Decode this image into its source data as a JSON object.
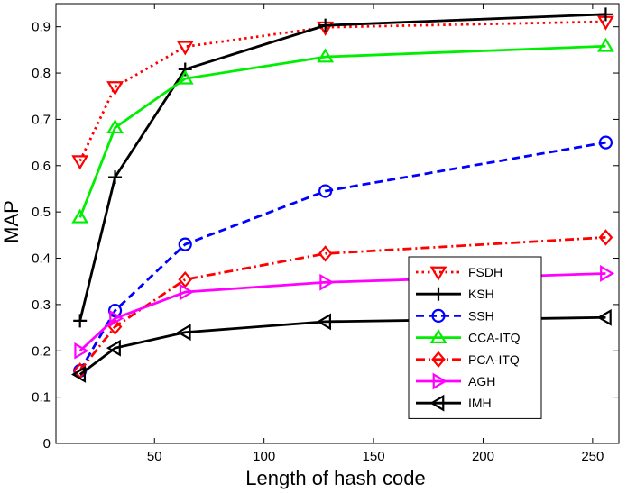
{
  "chart_data": {
    "type": "line",
    "title": "",
    "xlabel": "Length of hash code",
    "ylabel": "MAP",
    "xlim": [
      5,
      262
    ],
    "ylim": [
      0,
      0.95
    ],
    "xticks": [
      50,
      100,
      150,
      200,
      250
    ],
    "yticks": [
      0,
      0.1,
      0.2,
      0.3,
      0.4,
      0.5,
      0.6,
      0.7,
      0.8,
      0.9
    ],
    "x": [
      16,
      32,
      64,
      128,
      256
    ],
    "grid": false,
    "legend_position": "lower-right",
    "series": [
      {
        "name": "FSDH",
        "values": [
          0.61,
          0.77,
          0.857,
          0.899,
          0.911
        ],
        "color": "#ff0000",
        "dash": "dotted",
        "marker": "triangle-down"
      },
      {
        "name": "KSH",
        "values": [
          0.265,
          0.575,
          0.808,
          0.903,
          0.927
        ],
        "color": "#000000",
        "dash": "solid",
        "marker": "plus"
      },
      {
        "name": "SSH",
        "values": [
          0.157,
          0.287,
          0.43,
          0.545,
          0.65
        ],
        "color": "#0000ff",
        "dash": "dashed",
        "marker": "circle"
      },
      {
        "name": "CCA-ITQ",
        "values": [
          0.488,
          0.682,
          0.788,
          0.835,
          0.858
        ],
        "color": "#00ee00",
        "dash": "solid",
        "marker": "triangle-up"
      },
      {
        "name": "PCA-ITQ",
        "values": [
          0.157,
          0.252,
          0.354,
          0.41,
          0.445
        ],
        "color": "#ff0000",
        "dash": "dashdot",
        "marker": "diamond"
      },
      {
        "name": "AGH",
        "values": [
          0.2,
          0.27,
          0.327,
          0.348,
          0.367
        ],
        "color": "#ff00ff",
        "dash": "solid",
        "marker": "triangle-right"
      },
      {
        "name": "IMH",
        "values": [
          0.149,
          0.206,
          0.24,
          0.263,
          0.272
        ],
        "color": "#000000",
        "dash": "solid",
        "marker": "triangle-left"
      }
    ]
  }
}
